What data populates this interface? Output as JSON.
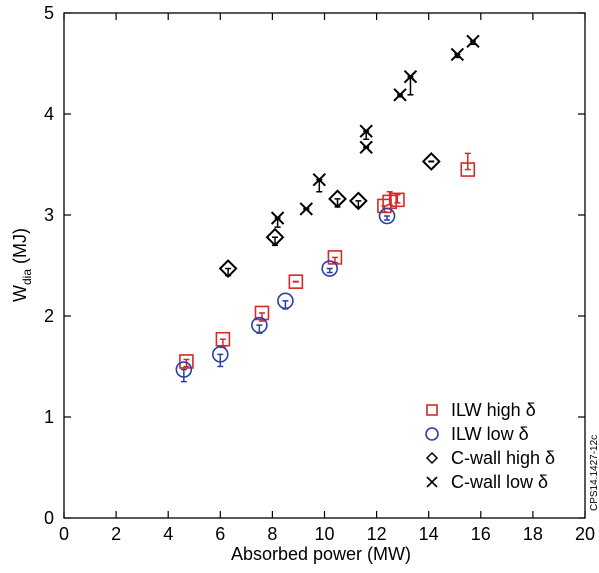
{
  "chart_data": {
    "type": "scatter",
    "xlabel": "Absorbed power (MW)",
    "ylabel": "W",
    "ylabel_sub": "dia",
    "ylabel_unit": "(MJ)",
    "xlim": [
      0,
      20
    ],
    "ylim": [
      0,
      5
    ],
    "xticks": [
      "0",
      "2",
      "4",
      "6",
      "8",
      "10",
      "12",
      "14",
      "16",
      "18",
      "20"
    ],
    "yticks": [
      "0",
      "1",
      "2",
      "3",
      "4",
      "5"
    ],
    "grid": false,
    "legend_position": "bottom-right",
    "series": [
      {
        "name": "ILW high δ",
        "marker": "square",
        "color": "#d42a2a",
        "points": [
          {
            "x": 4.7,
            "y": 1.55,
            "elo": 1.5,
            "ehi": 1.57
          },
          {
            "x": 6.1,
            "y": 1.77,
            "elo": 1.69,
            "ehi": 1.77
          },
          {
            "x": 7.6,
            "y": 2.03,
            "elo": 1.95,
            "ehi": 2.03
          },
          {
            "x": 8.9,
            "y": 2.34,
            "elo": 2.34,
            "ehi": 2.34
          },
          {
            "x": 10.4,
            "y": 2.58,
            "elo": 2.53,
            "ehi": 2.58
          },
          {
            "x": 12.3,
            "y": 3.09,
            "elo": 3.03,
            "ehi": 3.09
          },
          {
            "x": 12.5,
            "y": 3.13,
            "elo": 3.1,
            "ehi": 3.23
          },
          {
            "x": 12.8,
            "y": 3.15,
            "elo": 3.12,
            "ehi": 3.2
          },
          {
            "x": 15.5,
            "y": 3.45,
            "elo": 3.45,
            "ehi": 3.61
          }
        ]
      },
      {
        "name": "ILW low δ",
        "marker": "circle",
        "color": "#2b3ea8",
        "points": [
          {
            "x": 4.6,
            "y": 1.47,
            "elo": 1.35,
            "ehi": 1.47
          },
          {
            "x": 6.0,
            "y": 1.62,
            "elo": 1.5,
            "ehi": 1.62
          },
          {
            "x": 7.5,
            "y": 1.91,
            "elo": 1.83,
            "ehi": 1.91
          },
          {
            "x": 8.5,
            "y": 2.15,
            "elo": 2.07,
            "ehi": 2.15
          },
          {
            "x": 10.2,
            "y": 2.47,
            "elo": 2.43,
            "ehi": 2.47
          },
          {
            "x": 12.4,
            "y": 2.99,
            "elo": 2.95,
            "ehi": 2.99
          }
        ]
      },
      {
        "name": "C-wall high δ",
        "marker": "diamond",
        "color": "#000000",
        "points": [
          {
            "x": 6.3,
            "y": 2.47,
            "elo": 2.4,
            "ehi": 2.47
          },
          {
            "x": 8.1,
            "y": 2.78,
            "elo": 2.7,
            "ehi": 2.78
          },
          {
            "x": 10.5,
            "y": 3.16,
            "elo": 3.08,
            "ehi": 3.16
          },
          {
            "x": 11.3,
            "y": 3.14,
            "elo": 3.08,
            "ehi": 3.14
          },
          {
            "x": 14.1,
            "y": 3.53,
            "elo": 3.53,
            "ehi": 3.53
          }
        ]
      },
      {
        "name": "C-wall low δ",
        "marker": "x",
        "color": "#000000",
        "points": [
          {
            "x": 8.2,
            "y": 2.97,
            "elo": 2.88,
            "ehi": 2.97
          },
          {
            "x": 9.3,
            "y": 3.06,
            "elo": 3.06,
            "ehi": 3.06
          },
          {
            "x": 9.8,
            "y": 3.35,
            "elo": 3.23,
            "ehi": 3.35
          },
          {
            "x": 11.6,
            "y": 3.83,
            "elo": 3.75,
            "ehi": 3.83
          },
          {
            "x": 11.6,
            "y": 3.67,
            "elo": 3.67,
            "ehi": 3.67
          },
          {
            "x": 12.9,
            "y": 4.19,
            "elo": 4.17,
            "ehi": 4.19
          },
          {
            "x": 13.3,
            "y": 4.37,
            "elo": 4.19,
            "ehi": 4.37
          },
          {
            "x": 15.1,
            "y": 4.59,
            "elo": 4.56,
            "ehi": 4.59
          },
          {
            "x": 15.7,
            "y": 4.72,
            "elo": 4.69,
            "ehi": 4.72
          }
        ]
      }
    ]
  },
  "watermark": "CPS14.1427-12c"
}
